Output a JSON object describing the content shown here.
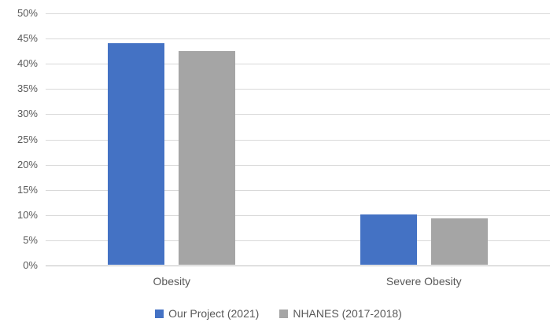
{
  "chart_data": {
    "type": "bar",
    "title": "",
    "xlabel": "",
    "ylabel": "",
    "categories": [
      "Obesity",
      "Severe Obesity"
    ],
    "series": [
      {
        "name": "Our Project (2021)",
        "color": "#4472C4",
        "values": [
          43.9,
          9.9
        ]
      },
      {
        "name": "NHANES (2017-2018)",
        "color": "#A5A5A5",
        "values": [
          42.4,
          9.2
        ]
      }
    ],
    "y_ticks": [
      "50%",
      "45%",
      "40%",
      "35%",
      "30%",
      "25%",
      "20%",
      "15%",
      "10%",
      "5%",
      "0%"
    ],
    "ylim": [
      0,
      50
    ],
    "grid": true,
    "legend_position": "bottom"
  },
  "style": {
    "background": "#FFFFFF",
    "gridline_color": "#D9D9D9",
    "axis_line_color": "#BFBFBF",
    "text_color": "#595959"
  }
}
